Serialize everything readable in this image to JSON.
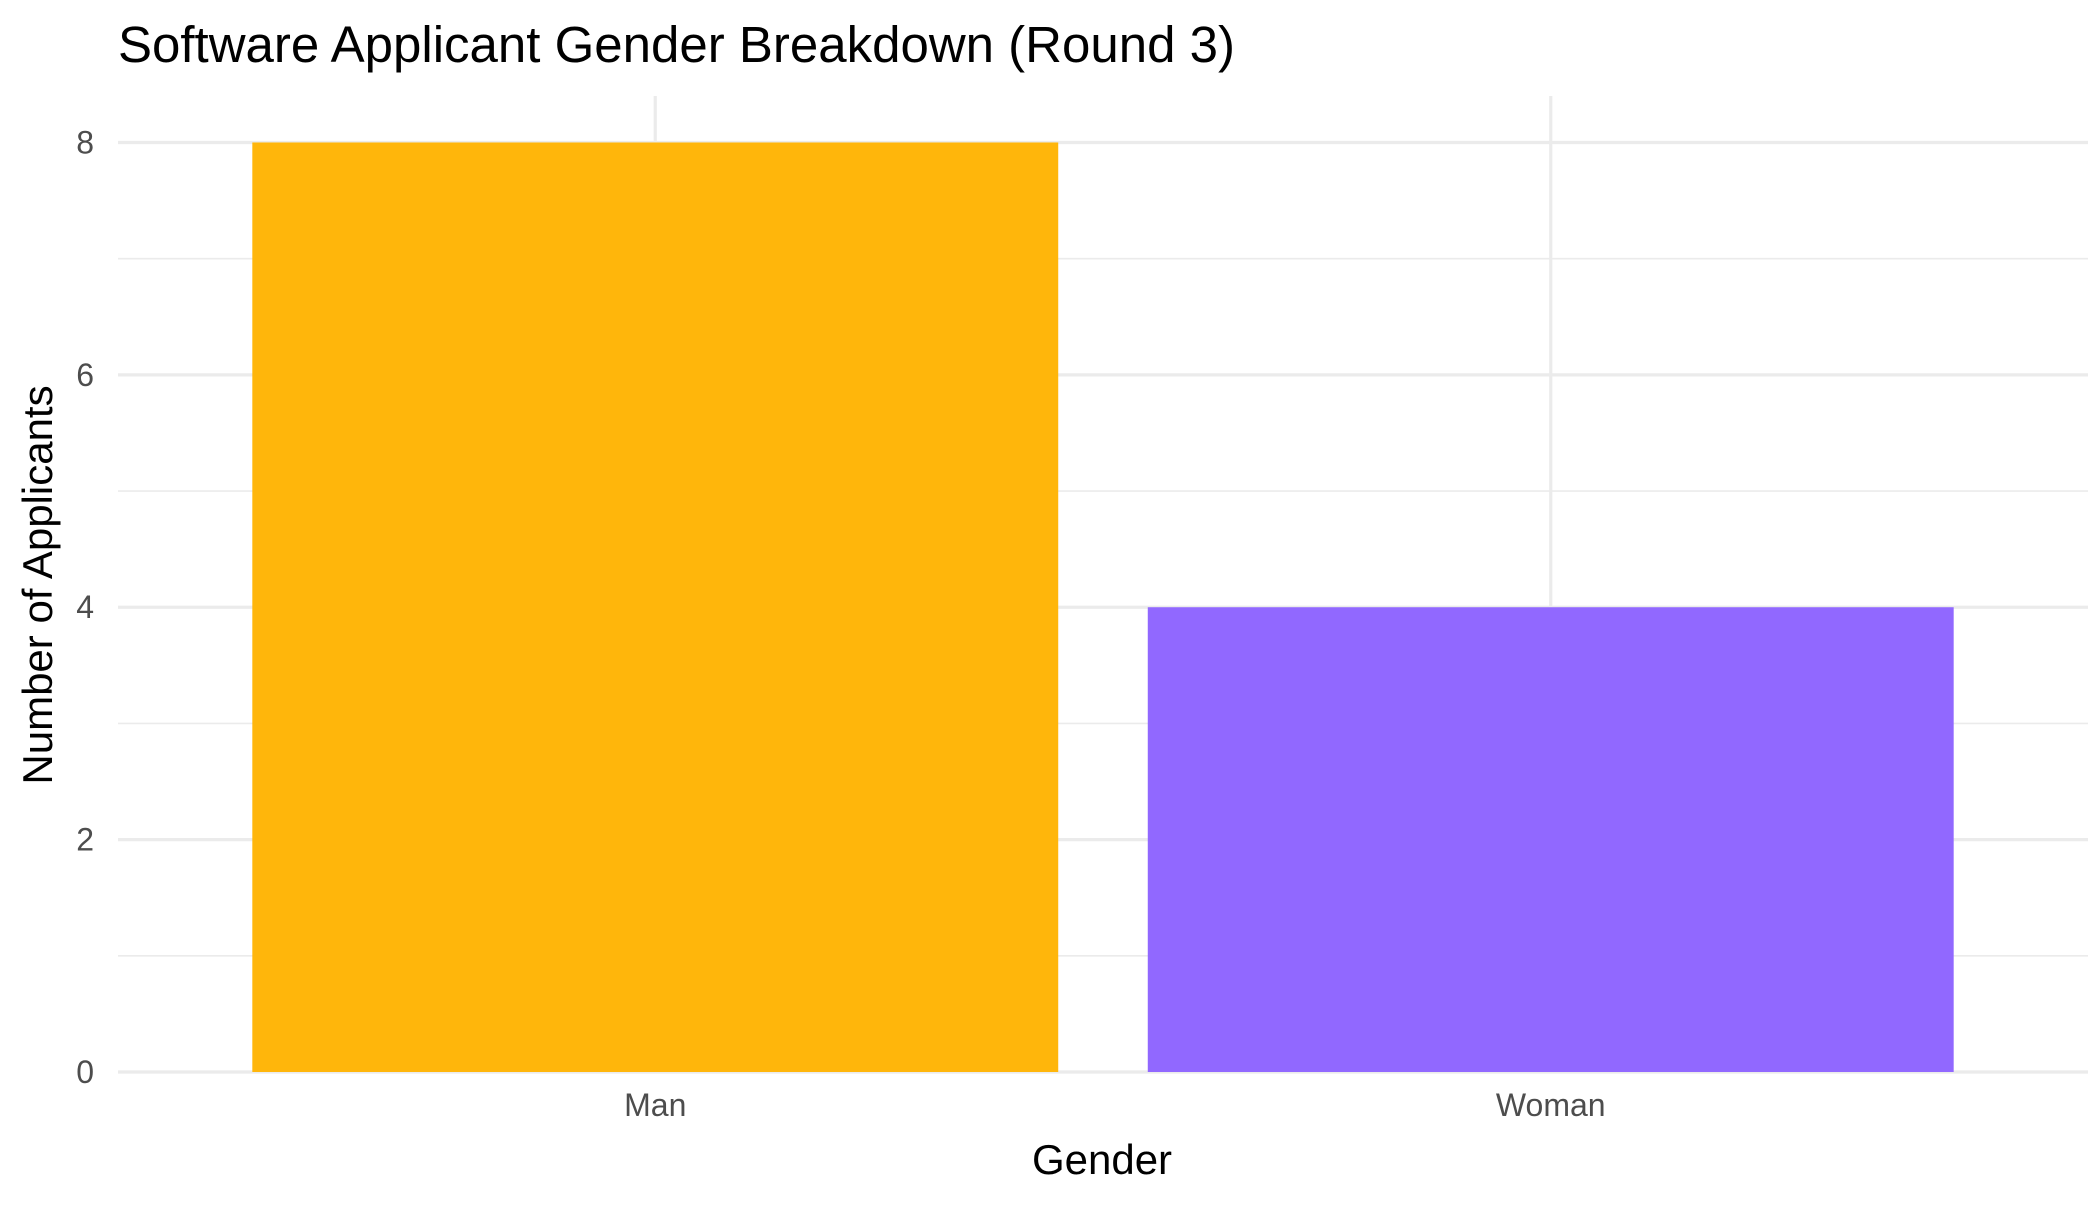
{
  "chart_data": {
    "type": "bar",
    "title": "Software Applicant Gender Breakdown (Round 3)",
    "xlabel": "Gender",
    "ylabel": "Number of Applicants",
    "categories": [
      "Man",
      "Woman"
    ],
    "values": [
      8,
      4
    ],
    "colors": [
      "#FFB60B",
      "#9168FF"
    ],
    "ylim": [
      0,
      8.4
    ],
    "y_ticks": [
      0,
      2,
      4,
      6,
      8
    ],
    "y_minor_ticks": [
      1,
      3,
      5,
      7
    ],
    "grid": true,
    "legend": "none"
  }
}
